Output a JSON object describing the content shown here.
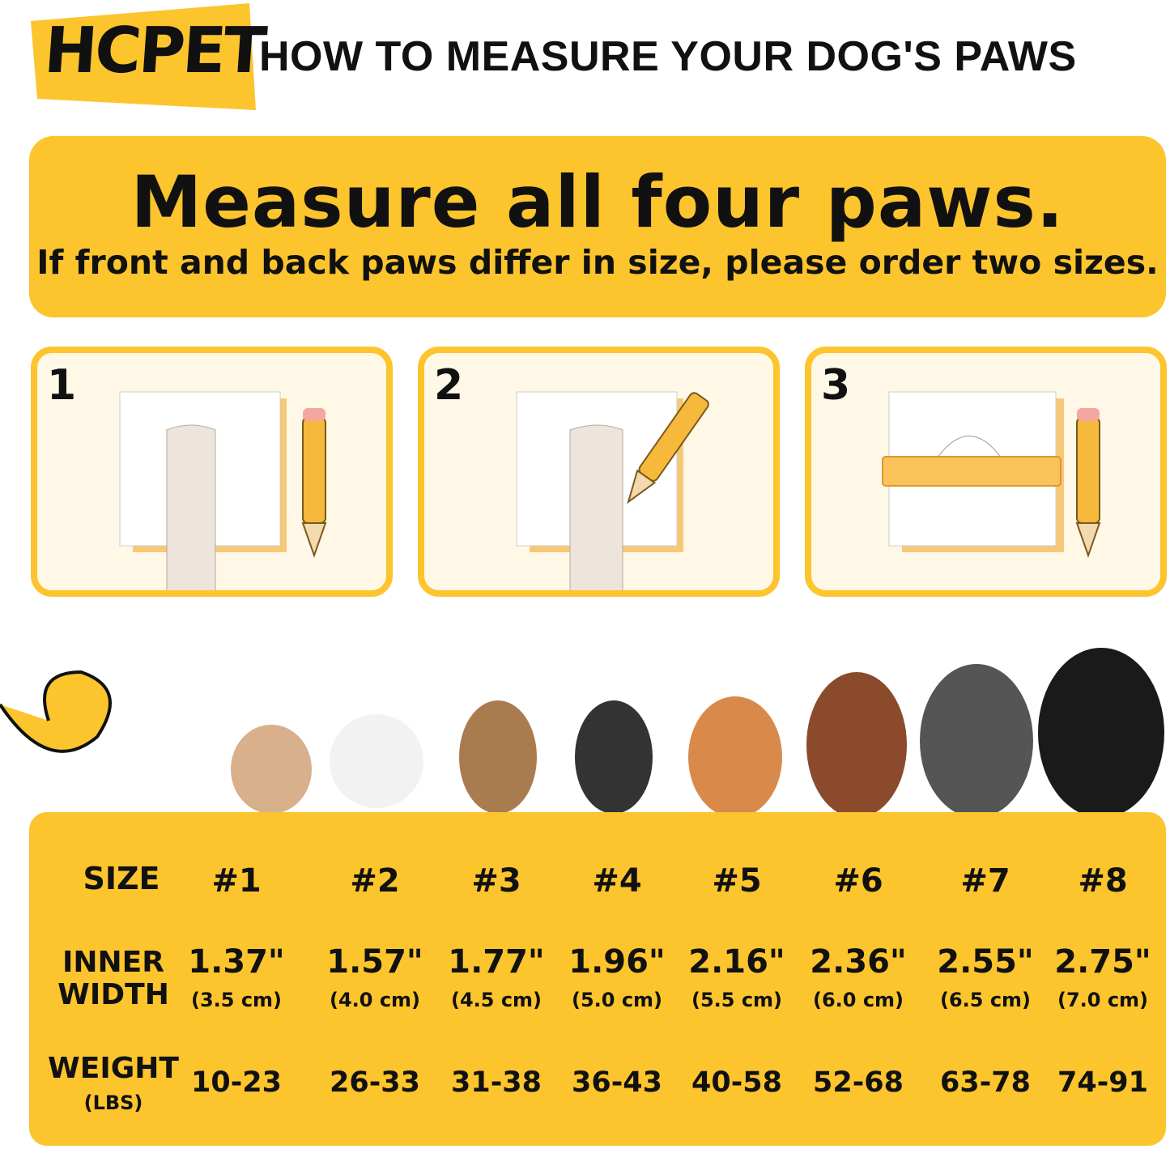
{
  "brand": "HCPET",
  "headline": "HOW TO MEASURE YOUR DOG'S PAWS",
  "banner": {
    "title": "Measure all four paws.",
    "subtitle": "If front and back paws differ in size, please order two sizes."
  },
  "steps": [
    {
      "number": "1"
    },
    {
      "number": "2"
    },
    {
      "number": "3"
    }
  ],
  "colors": {
    "accent": "#FCC42D",
    "panel": "#FFF8E7",
    "text": "#111111"
  },
  "table": {
    "size_label": "SIZE",
    "width_label": [
      "INNER",
      "WIDTH"
    ],
    "weight_label": [
      "WEIGHT",
      "(LBS)"
    ],
    "sizes": [
      "#1",
      "#2",
      "#3",
      "#4",
      "#5",
      "#6",
      "#7",
      "#8"
    ],
    "inner_width_in": [
      "1.37\"",
      "1.57\"",
      "1.77\"",
      "1.96\"",
      "2.16\"",
      "2.36\"",
      "2.55\"",
      "2.75\""
    ],
    "inner_width_cm": [
      "(3.5 cm)",
      "(4.0 cm)",
      "(4.5 cm)",
      "(5.0 cm)",
      "(5.5 cm)",
      "(6.0 cm)",
      "(6.5 cm)",
      "(7.0 cm)"
    ],
    "weight_lbs": [
      "10-23",
      "26-33",
      "31-38",
      "36-43",
      "40-58",
      "52-68",
      "63-78",
      "74-91"
    ]
  }
}
